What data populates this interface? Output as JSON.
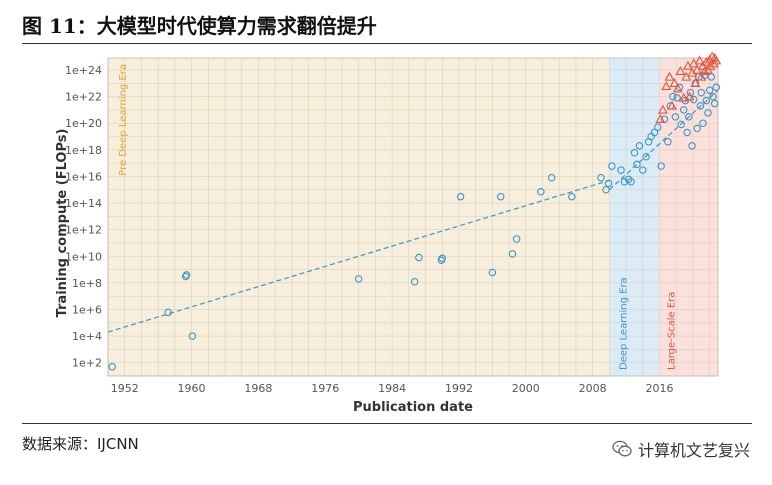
{
  "figure": {
    "title": "图 11：大模型时代使算力需求翻倍提升",
    "source": "数据来源：IJCNN",
    "brand": "计算机文艺复兴",
    "brand_icon": "wechat-icon"
  },
  "chart_data": {
    "type": "scatter",
    "title": "",
    "xlabel": "Publication date",
    "ylabel": "Training compute (FLOPs)",
    "xlim": [
      1950,
      2023
    ],
    "ylim_log10": [
      1,
      24.9
    ],
    "y_scale": "log",
    "grid": true,
    "x_ticks": [
      1952,
      1960,
      1968,
      1976,
      1984,
      1992,
      2000,
      2008,
      2016
    ],
    "y_ticks": [
      "1e+2",
      "1e+4",
      "1e+6",
      "1e+8",
      "1e+10",
      "1e+12",
      "1e+14",
      "1e+16",
      "1e+18",
      "1e+20",
      "1e+22",
      "1e+24"
    ],
    "y_tick_values": [
      100,
      10000,
      1000000,
      100000000,
      10000000000,
      1000000000000,
      100000000000000,
      10000000000000000,
      1000000000000000000,
      100000000000000000000,
      10000000000000000000000,
      1000000000000000000000000
    ],
    "eras": [
      {
        "name": "Pre Deep Learning Era",
        "x_start": 1950,
        "x_end": 2010,
        "color": "#f7efdc",
        "label_color": "#e3a33a"
      },
      {
        "name": "Deep Learning Era",
        "x_start": 2010,
        "x_end": 2016,
        "color": "#dcecf6",
        "label_color": "#3a96c8"
      },
      {
        "name": "Large-Scale Era",
        "x_start": 2016,
        "x_end": 2023,
        "color": "#fbe0dc",
        "label_color": "#e2543f"
      }
    ],
    "trend_lines": [
      {
        "x": [
          1950,
          2010
        ],
        "y": [
          20000,
          5000000000000000
        ],
        "color": "#3a96c8"
      },
      {
        "x": [
          2010,
          2023
        ],
        "y": [
          1000000000000000,
          30000000000000000000000
        ],
        "color": "#3a96c8"
      }
    ],
    "series": [
      {
        "marker": "circle",
        "color": "#3a96c8",
        "x": [
          1950.5,
          1957.2,
          1959.3,
          1959.4,
          1960.1,
          1980.0,
          1986.7,
          1987.2,
          1989.9,
          1990.0,
          1992.2,
          1996.0,
          1997.0,
          1998.4,
          1998.9,
          2001.8,
          2003.1,
          2005.5,
          2009.0,
          2009.6,
          2009.9,
          2010.3,
          2011.4,
          2011.8,
          2012.3,
          2012.6,
          2013.0,
          2013.3,
          2013.6,
          2014.0,
          2014.4,
          2014.7,
          2015.0,
          2015.4,
          2015.8,
          2016.2,
          2016.6,
          2017.0,
          2017.3,
          2017.6,
          2017.9,
          2018.1,
          2018.4,
          2018.6,
          2018.9,
          2019.1,
          2019.3,
          2019.5,
          2019.7,
          2019.9,
          2020.1,
          2020.3,
          2020.5,
          2020.7,
          2020.9,
          2021.0,
          2021.2,
          2021.4,
          2021.6,
          2021.8,
          2022.0,
          2022.2,
          2022.4,
          2022.6,
          2022.8
        ],
        "y": [
          50,
          600000,
          300000000,
          400000000,
          10000,
          200000000,
          120000000,
          8000000000,
          5000000000,
          7000000000,
          300000000000000,
          600000000,
          300000000000000,
          15000000000,
          200000000000,
          700000000000000,
          8000000000000000,
          300000000000000,
          8000000000000000,
          1000000000000000,
          3000000000000000,
          60000000000000000,
          30000000000000000,
          4000000000000000,
          6000000000000000,
          4000000000000000,
          600000000000000000,
          80000000000000000,
          2000000000000000000,
          30000000000000000,
          300000000000000000,
          4000000000000000000,
          10000000000000000000,
          20000000000000000000,
          50000000000000000000,
          60000000000000000,
          200000000000000000000,
          4000000000000000000,
          2000000000000000000000,
          10000000000000000000000,
          300000000000000000000,
          8000000000000000000000,
          50000000000000000000000,
          80000000000000000000,
          1000000000000000000000,
          5000000000000000000000,
          20000000000000000000,
          300000000000000000000,
          20000000000000000000000,
          2000000000000000000,
          6000000000000000000000,
          100000000000000000000000,
          40000000000000000000,
          300000000000000000000000,
          2000000000000000000000,
          20000000000000000000000,
          100000000000000000000,
          400000000000000000000000,
          5000000000000000000000,
          600000000000000000000,
          30000000000000000000000,
          300000000000000000000000,
          10000000000000000000000,
          3000000000000000000000,
          50000000000000000000000
        ]
      },
      {
        "marker": "triangle",
        "color": "#e2543f",
        "x": [
          2016.1,
          2016.4,
          2016.8,
          2017.2,
          2017.5,
          2017.8,
          2018.2,
          2018.5,
          2018.9,
          2019.2,
          2019.4,
          2019.6,
          2019.9,
          2020.1,
          2020.3,
          2020.5,
          2020.8,
          2021.0,
          2021.2,
          2021.4,
          2021.6,
          2021.8,
          2022.0,
          2022.1,
          2022.3,
          2022.5,
          2022.6,
          2022.8
        ],
        "y": [
          200000000000000000000,
          1000000000000000000000,
          60000000000000000000000,
          300000000000000000000000,
          2000000000000000000000,
          100000000000000000000000,
          40000000000000000000000,
          800000000000000000000000,
          8000000000000000000000,
          300000000000000000000000,
          2000000000000000000000000,
          10000000000000000000000,
          600000000000000000000000,
          3000000000000000000000000,
          100000000000000000000000,
          1000000000000000000000000,
          5000000000000000000000000,
          300000000000000000000000,
          2000000000000000000000000,
          800000000000000000000000,
          4000000000000000000000000,
          1000000000000000000000000,
          6000000000000000000000000,
          2000000000000000000000000,
          10000000000000000000000000,
          3000000000000000000000000,
          8000000000000000000000000,
          5000000000000000000000000
        ]
      }
    ]
  }
}
